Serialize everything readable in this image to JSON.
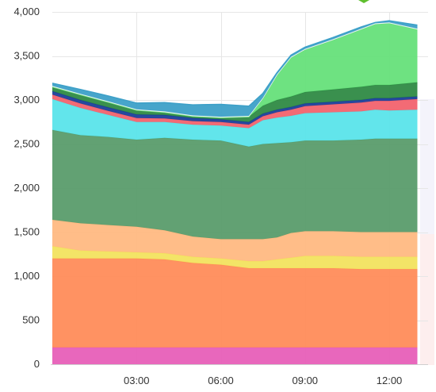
{
  "chart_data": {
    "type": "area",
    "stacked": true,
    "grid": true,
    "legend": "none",
    "ylim": [
      0,
      4000
    ],
    "y_ticks": [
      "0",
      "500",
      "1,000",
      "1,500",
      "2,000",
      "2,500",
      "3,000",
      "3,500",
      "4,000"
    ],
    "xlim_hours": [
      0,
      13.1
    ],
    "x_ticks": [
      {
        "hour": 3,
        "label": "03:00"
      },
      {
        "hour": 6,
        "label": "06:00"
      },
      {
        "hour": 9,
        "label": "09:00"
      },
      {
        "hour": 12,
        "label": "12:00"
      }
    ],
    "x": [
      0,
      1,
      2,
      3,
      4,
      5,
      6,
      7,
      7.5,
      8,
      8.5,
      9,
      10,
      11,
      11.5,
      12,
      13
    ],
    "series": [
      {
        "color": "#e75fb8",
        "values": [
          190,
          190,
          190,
          190,
          190,
          190,
          190,
          190,
          190,
          190,
          190,
          190,
          190,
          190,
          190,
          190,
          190
        ]
      },
      {
        "color": "#ff8c5a",
        "values": [
          1010,
          1010,
          1010,
          1010,
          1000,
          960,
          940,
          900,
          900,
          900,
          900,
          900,
          900,
          890,
          890,
          890,
          890
        ]
      },
      {
        "color": "#f2e35f",
        "values": [
          140,
          90,
          80,
          70,
          70,
          70,
          70,
          80,
          80,
          100,
          120,
          140,
          140,
          140,
          140,
          140,
          140
        ]
      },
      {
        "color": "#ffb982",
        "values": [
          300,
          310,
          300,
          290,
          260,
          230,
          220,
          250,
          250,
          250,
          280,
          280,
          280,
          280,
          280,
          280,
          280
        ]
      },
      {
        "color": "#5a9c6c",
        "values": [
          1020,
          1000,
          1000,
          990,
          1050,
          1100,
          1120,
          1050,
          1080,
          1070,
          1030,
          1030,
          1030,
          1050,
          1060,
          1060,
          1060
        ]
      },
      {
        "color": "#5ae4ea",
        "values": [
          350,
          310,
          250,
          200,
          180,
          170,
          170,
          210,
          270,
          290,
          300,
          310,
          320,
          320,
          330,
          320,
          330
        ]
      },
      {
        "color": "#f2636e",
        "values": [
          50,
          50,
          45,
          45,
          40,
          40,
          40,
          40,
          45,
          60,
          70,
          80,
          90,
          100,
          100,
          110,
          120
        ]
      },
      {
        "color": "#1b3f9a",
        "values": [
          40,
          40,
          40,
          40,
          40,
          35,
          30,
          30,
          30,
          30,
          30,
          30,
          30,
          30,
          30,
          30,
          30
        ]
      },
      {
        "color": "#2f8a45",
        "values": [
          50,
          60,
          60,
          50,
          30,
          20,
          20,
          60,
          90,
          110,
          120,
          130,
          140,
          150,
          150,
          150,
          160
        ]
      },
      {
        "color": "#66e07a",
        "values": [
          0,
          0,
          0,
          0,
          0,
          0,
          0,
          0,
          80,
          280,
          440,
          480,
          560,
          650,
          690,
          700,
          600
        ]
      },
      {
        "color": "#e9f3ee",
        "values": [
          10,
          10,
          10,
          10,
          10,
          10,
          10,
          10,
          10,
          10,
          10,
          10,
          10,
          10,
          10,
          10,
          10
        ]
      },
      {
        "color": "#3da0c8",
        "values": [
          30,
          50,
          60,
          70,
          100,
          120,
          140,
          110,
          50,
          20,
          20,
          20,
          20,
          20,
          10,
          20,
          40
        ]
      }
    ]
  }
}
